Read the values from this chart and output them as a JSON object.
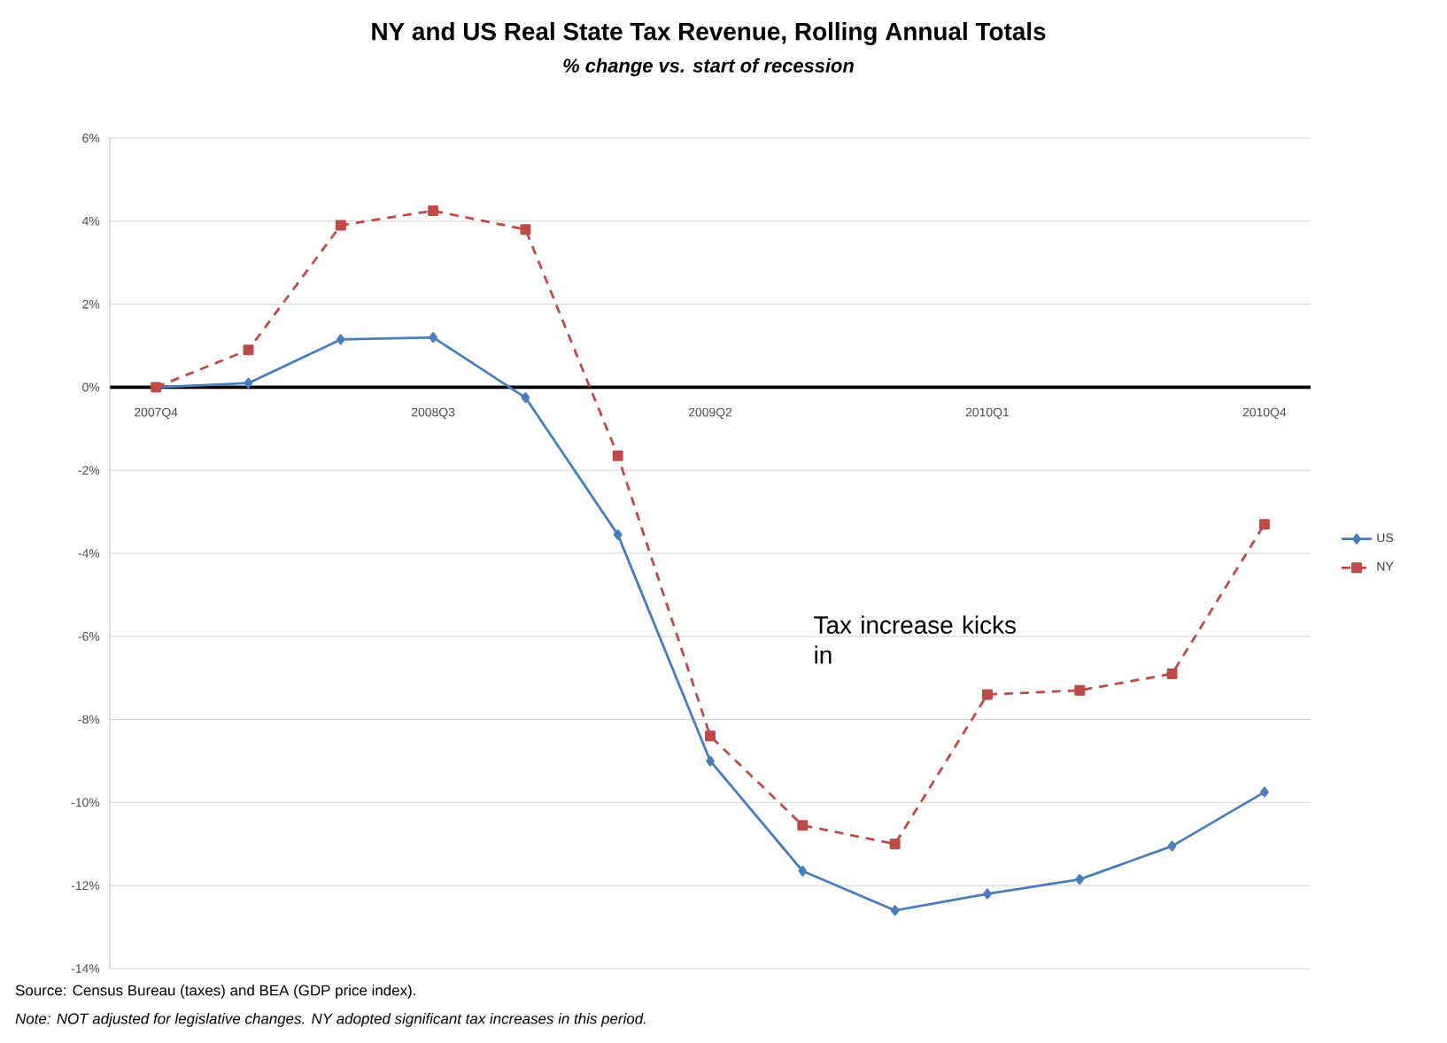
{
  "chart_data": {
    "type": "line",
    "title": "NY and US Real State Tax Revenue, Rolling Annual Totals",
    "subtitle": "% change vs. start of recession",
    "categories": [
      "2007Q4",
      null,
      null,
      "2008Q3",
      null,
      null,
      "2009Q2",
      null,
      null,
      "2010Q1",
      null,
      null,
      "2010Q4"
    ],
    "series": [
      {
        "name": "US",
        "color": "#4a7ebb",
        "marker": "diamond",
        "line_style": "solid",
        "values": [
          0,
          0.1,
          1.15,
          1.2,
          -0.25,
          -3.55,
          -9.0,
          -11.65,
          -12.6,
          -12.2,
          -11.85,
          -11.05,
          -9.75
        ]
      },
      {
        "name": "NY",
        "color": "#be4b48",
        "marker": "square",
        "line_style": "dashed",
        "values": [
          0,
          0.9,
          3.9,
          4.25,
          3.8,
          -1.65,
          -8.4,
          -10.55,
          -11.0,
          -7.4,
          -7.3,
          -6.9,
          -3.3
        ]
      }
    ],
    "ylim": [
      -14,
      6
    ],
    "yticks": [
      {
        "value": -14,
        "label": "-14%"
      },
      {
        "value": -12,
        "label": "-12%"
      },
      {
        "value": -10,
        "label": "-10%"
      },
      {
        "value": -8,
        "label": "-8%"
      },
      {
        "value": -6,
        "label": "-6%"
      },
      {
        "value": -4,
        "label": "-4%"
      },
      {
        "value": -2,
        "label": "-2%"
      },
      {
        "value": 0,
        "label": "0%"
      },
      {
        "value": 2,
        "label": "2%"
      },
      {
        "value": 4,
        "label": "4%"
      },
      {
        "value": 6,
        "label": "6%"
      }
    ],
    "grid": "y",
    "legend": "right",
    "annotations": [
      "Tax increase kicks in",
      "Source: Census Bureau (taxes) and BEA (GDP price index).",
      "Note: NOT adjusted for legislative changes. NY adopted significant tax increases in this period."
    ]
  }
}
